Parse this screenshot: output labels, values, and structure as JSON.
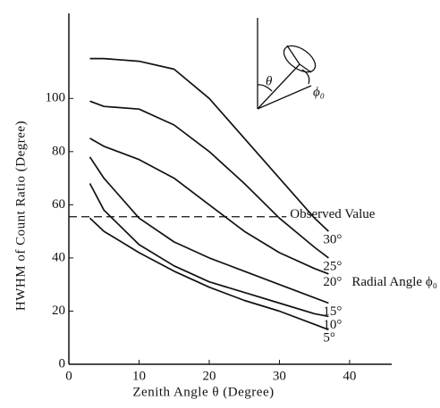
{
  "chart_data": {
    "type": "line",
    "x_label": "Zenith Angle θ (Degree)",
    "y_label": "HWHM of Count Ratio (Degree)",
    "x": [
      3,
      5,
      10,
      15,
      20,
      25,
      30,
      35,
      37
    ],
    "series": [
      {
        "name": "30°",
        "color": "#111111",
        "values": [
          115,
          115,
          114,
          111,
          100,
          85,
          70,
          55,
          50
        ]
      },
      {
        "name": "25°",
        "color": "#111111",
        "values": [
          99,
          97,
          96,
          90,
          80,
          68,
          55,
          44,
          40
        ]
      },
      {
        "name": "20°",
        "color": "#111111",
        "values": [
          85,
          82,
          77,
          70,
          60,
          50,
          42,
          36,
          34
        ]
      },
      {
        "name": "15°",
        "color": "#111111",
        "values": [
          78,
          70,
          55,
          46,
          40,
          35,
          30,
          25,
          23
        ]
      },
      {
        "name": "10°",
        "color": "#111111",
        "values": [
          68,
          58,
          45,
          37,
          31,
          27,
          23,
          19,
          18
        ]
      },
      {
        "name": "5°",
        "color": "#111111",
        "values": [
          55,
          50,
          42,
          35,
          29,
          24,
          20,
          15,
          13
        ]
      }
    ],
    "series_annotation": "Radial Angle ϕ₀",
    "reference_line": {
      "value": 55.5,
      "x_end": 31,
      "label": "Observed Value"
    },
    "inset_labels": [
      "θ",
      "ϕ₀"
    ],
    "xlim": [
      0,
      46
    ],
    "ylim": [
      0,
      132
    ],
    "xticks": [
      0,
      10,
      20,
      30,
      40
    ],
    "yticks": [
      0,
      20,
      40,
      60,
      80,
      100
    ]
  }
}
